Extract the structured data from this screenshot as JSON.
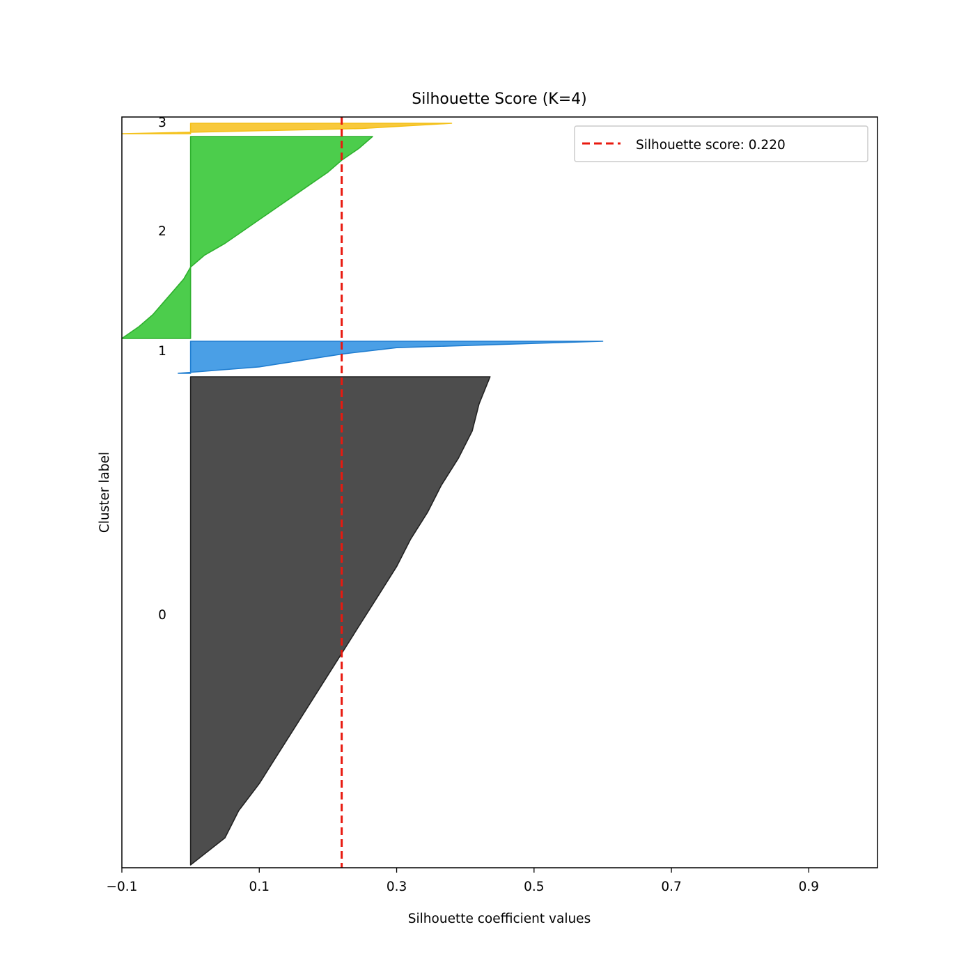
{
  "chart_data": {
    "type": "area",
    "title": "Silhouette Score (K=4)",
    "xlabel": "Silhouette coefficient values",
    "ylabel": "Cluster label",
    "xlim": [
      -0.1,
      1.0
    ],
    "xticks": [
      -0.1,
      0.1,
      0.3,
      0.5,
      0.7,
      0.9
    ],
    "xtick_labels": [
      "−0.1",
      "0.1",
      "0.3",
      "0.5",
      "0.7",
      "0.9"
    ],
    "grid": false,
    "legend_position": "top-right",
    "average_line": {
      "label": "Silhouette score: 0.220",
      "value": 0.22,
      "color": "#e8190f",
      "style": "dashed"
    },
    "clusters": [
      {
        "label": "0",
        "color": "#4d4d4d",
        "edge_color": "#222222",
        "values_ascending": [
          0.0,
          0.05,
          0.07,
          0.1,
          0.125,
          0.15,
          0.175,
          0.2,
          0.225,
          0.25,
          0.275,
          0.3,
          0.32,
          0.345,
          0.365,
          0.39,
          0.41,
          0.42,
          0.436
        ]
      },
      {
        "label": "1",
        "color": "#4a9fe6",
        "edge_color": "#1f7dd0",
        "values_ascending": [
          -0.018,
          0.1,
          0.16,
          0.22,
          0.3,
          0.6
        ]
      },
      {
        "label": "2",
        "color": "#4ccd4c",
        "edge_color": "#2eb02e",
        "values_ascending": [
          -0.1,
          -0.075,
          -0.055,
          -0.04,
          -0.025,
          -0.01,
          0.0,
          0.02,
          0.05,
          0.075,
          0.1,
          0.125,
          0.15,
          0.175,
          0.2,
          0.22,
          0.245,
          0.265
        ]
      },
      {
        "label": "3",
        "color": "#f8c93c",
        "edge_color": "#f4c016",
        "values_ascending": [
          -0.1,
          0.25,
          0.38
        ]
      }
    ]
  }
}
